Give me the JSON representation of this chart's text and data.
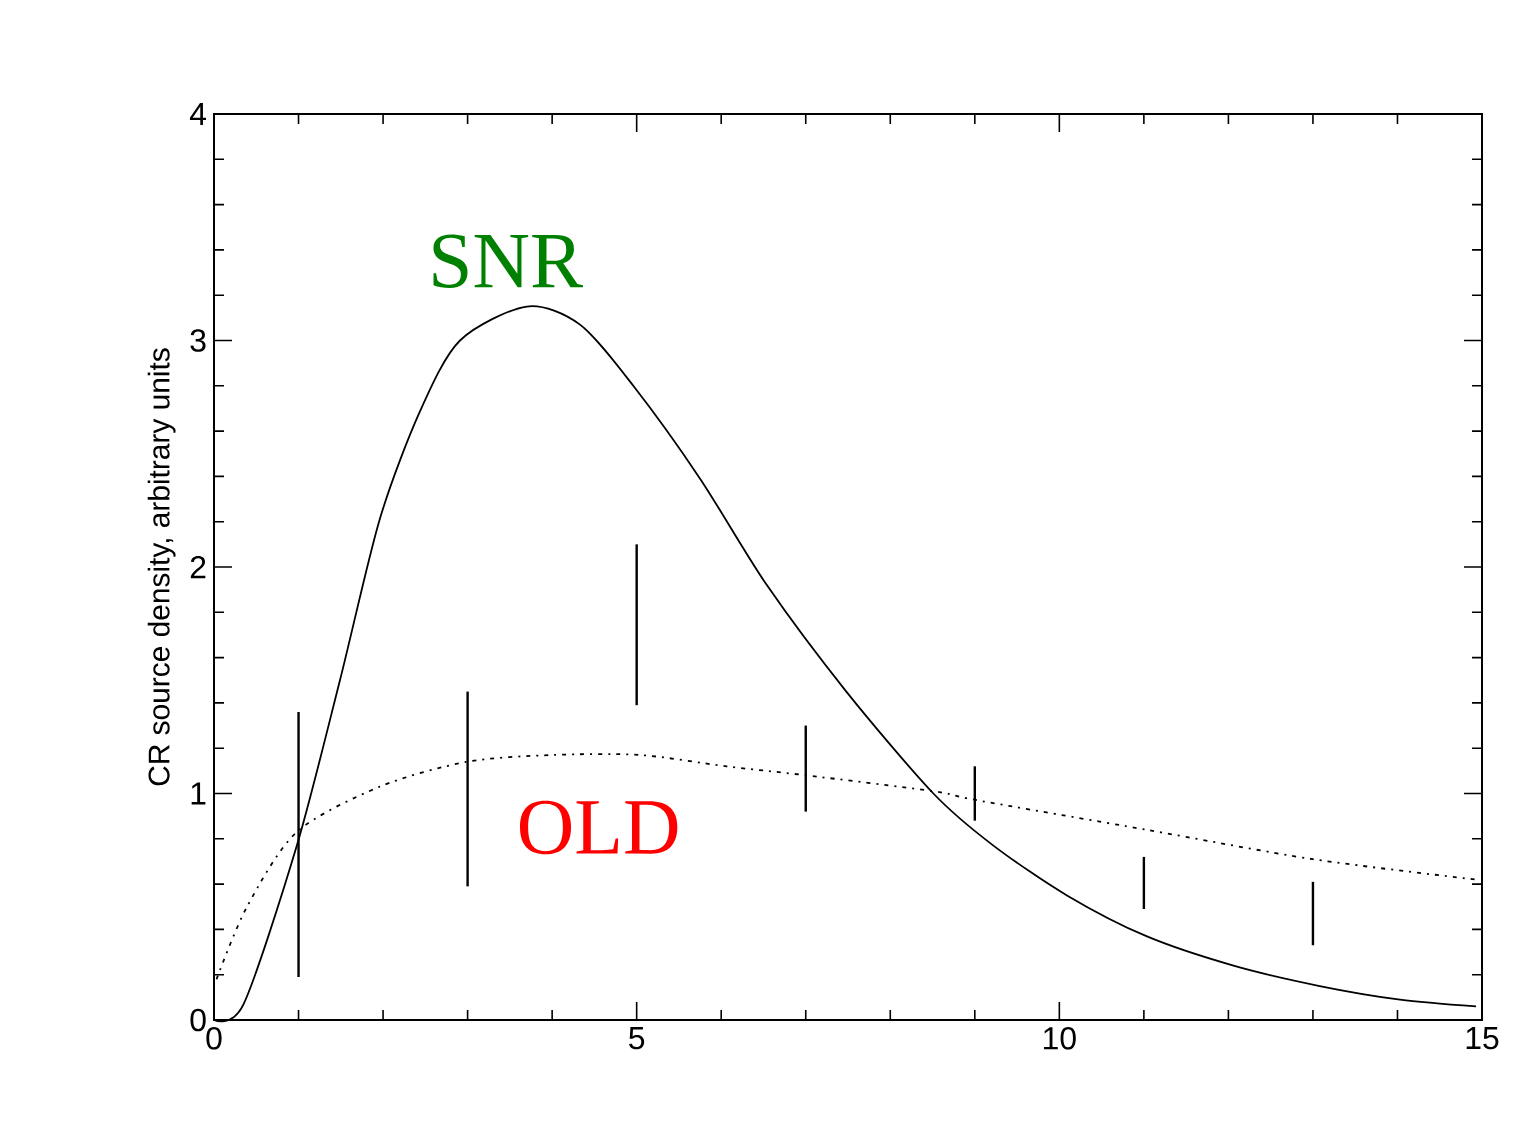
{
  "chart_data": {
    "type": "line",
    "ylabel": "CR source density, arbitrary units",
    "xlim": [
      0,
      15
    ],
    "xticks": [
      0,
      5,
      10,
      15
    ],
    "ylim": [
      0,
      4
    ],
    "yticks": [
      0,
      1,
      2,
      3,
      4
    ],
    "grid": false,
    "series": [
      {
        "name": "SNR",
        "color": "#000000",
        "line_style": "solid",
        "marker": "none",
        "x": [
          0,
          0.35,
          0.98,
          1.49,
          1.96,
          2.44,
          2.91,
          3.7,
          4.33,
          4.96,
          5.75,
          6.54,
          7.48,
          8.51,
          9.22,
          10.09,
          11.03,
          12.06,
          13.08,
          14.03,
          14.93
        ],
        "values": [
          0,
          0.07,
          0.77,
          1.5,
          2.21,
          2.69,
          3.0,
          3.15,
          3.07,
          2.8,
          2.39,
          1.92,
          1.45,
          1.0,
          0.77,
          0.55,
          0.37,
          0.24,
          0.15,
          0.09,
          0.06
        ]
      },
      {
        "name": "OLD",
        "color": "#000000",
        "line_style": "dotted",
        "marker": "none",
        "x": [
          0.03,
          0.39,
          0.98,
          1.96,
          2.99,
          4.01,
          5.04,
          6.06,
          7.01,
          8.51,
          9.03,
          11.03,
          13.0,
          14.93
        ],
        "values": [
          0.18,
          0.5,
          0.83,
          1.03,
          1.14,
          1.17,
          1.17,
          1.12,
          1.08,
          1.01,
          0.97,
          0.84,
          0.71,
          0.62
        ]
      },
      {
        "type": "bar",
        "color": "#000000",
        "x": [
          1,
          3,
          5,
          7,
          9,
          11,
          13
        ],
        "base": [
          0.19,
          0.59,
          1.39,
          0.92,
          0.88,
          0.49,
          0.33
        ],
        "values": [
          1.17,
          0.86,
          0.71,
          0.38,
          0.24,
          0.23,
          0.28
        ]
      }
    ]
  }
}
